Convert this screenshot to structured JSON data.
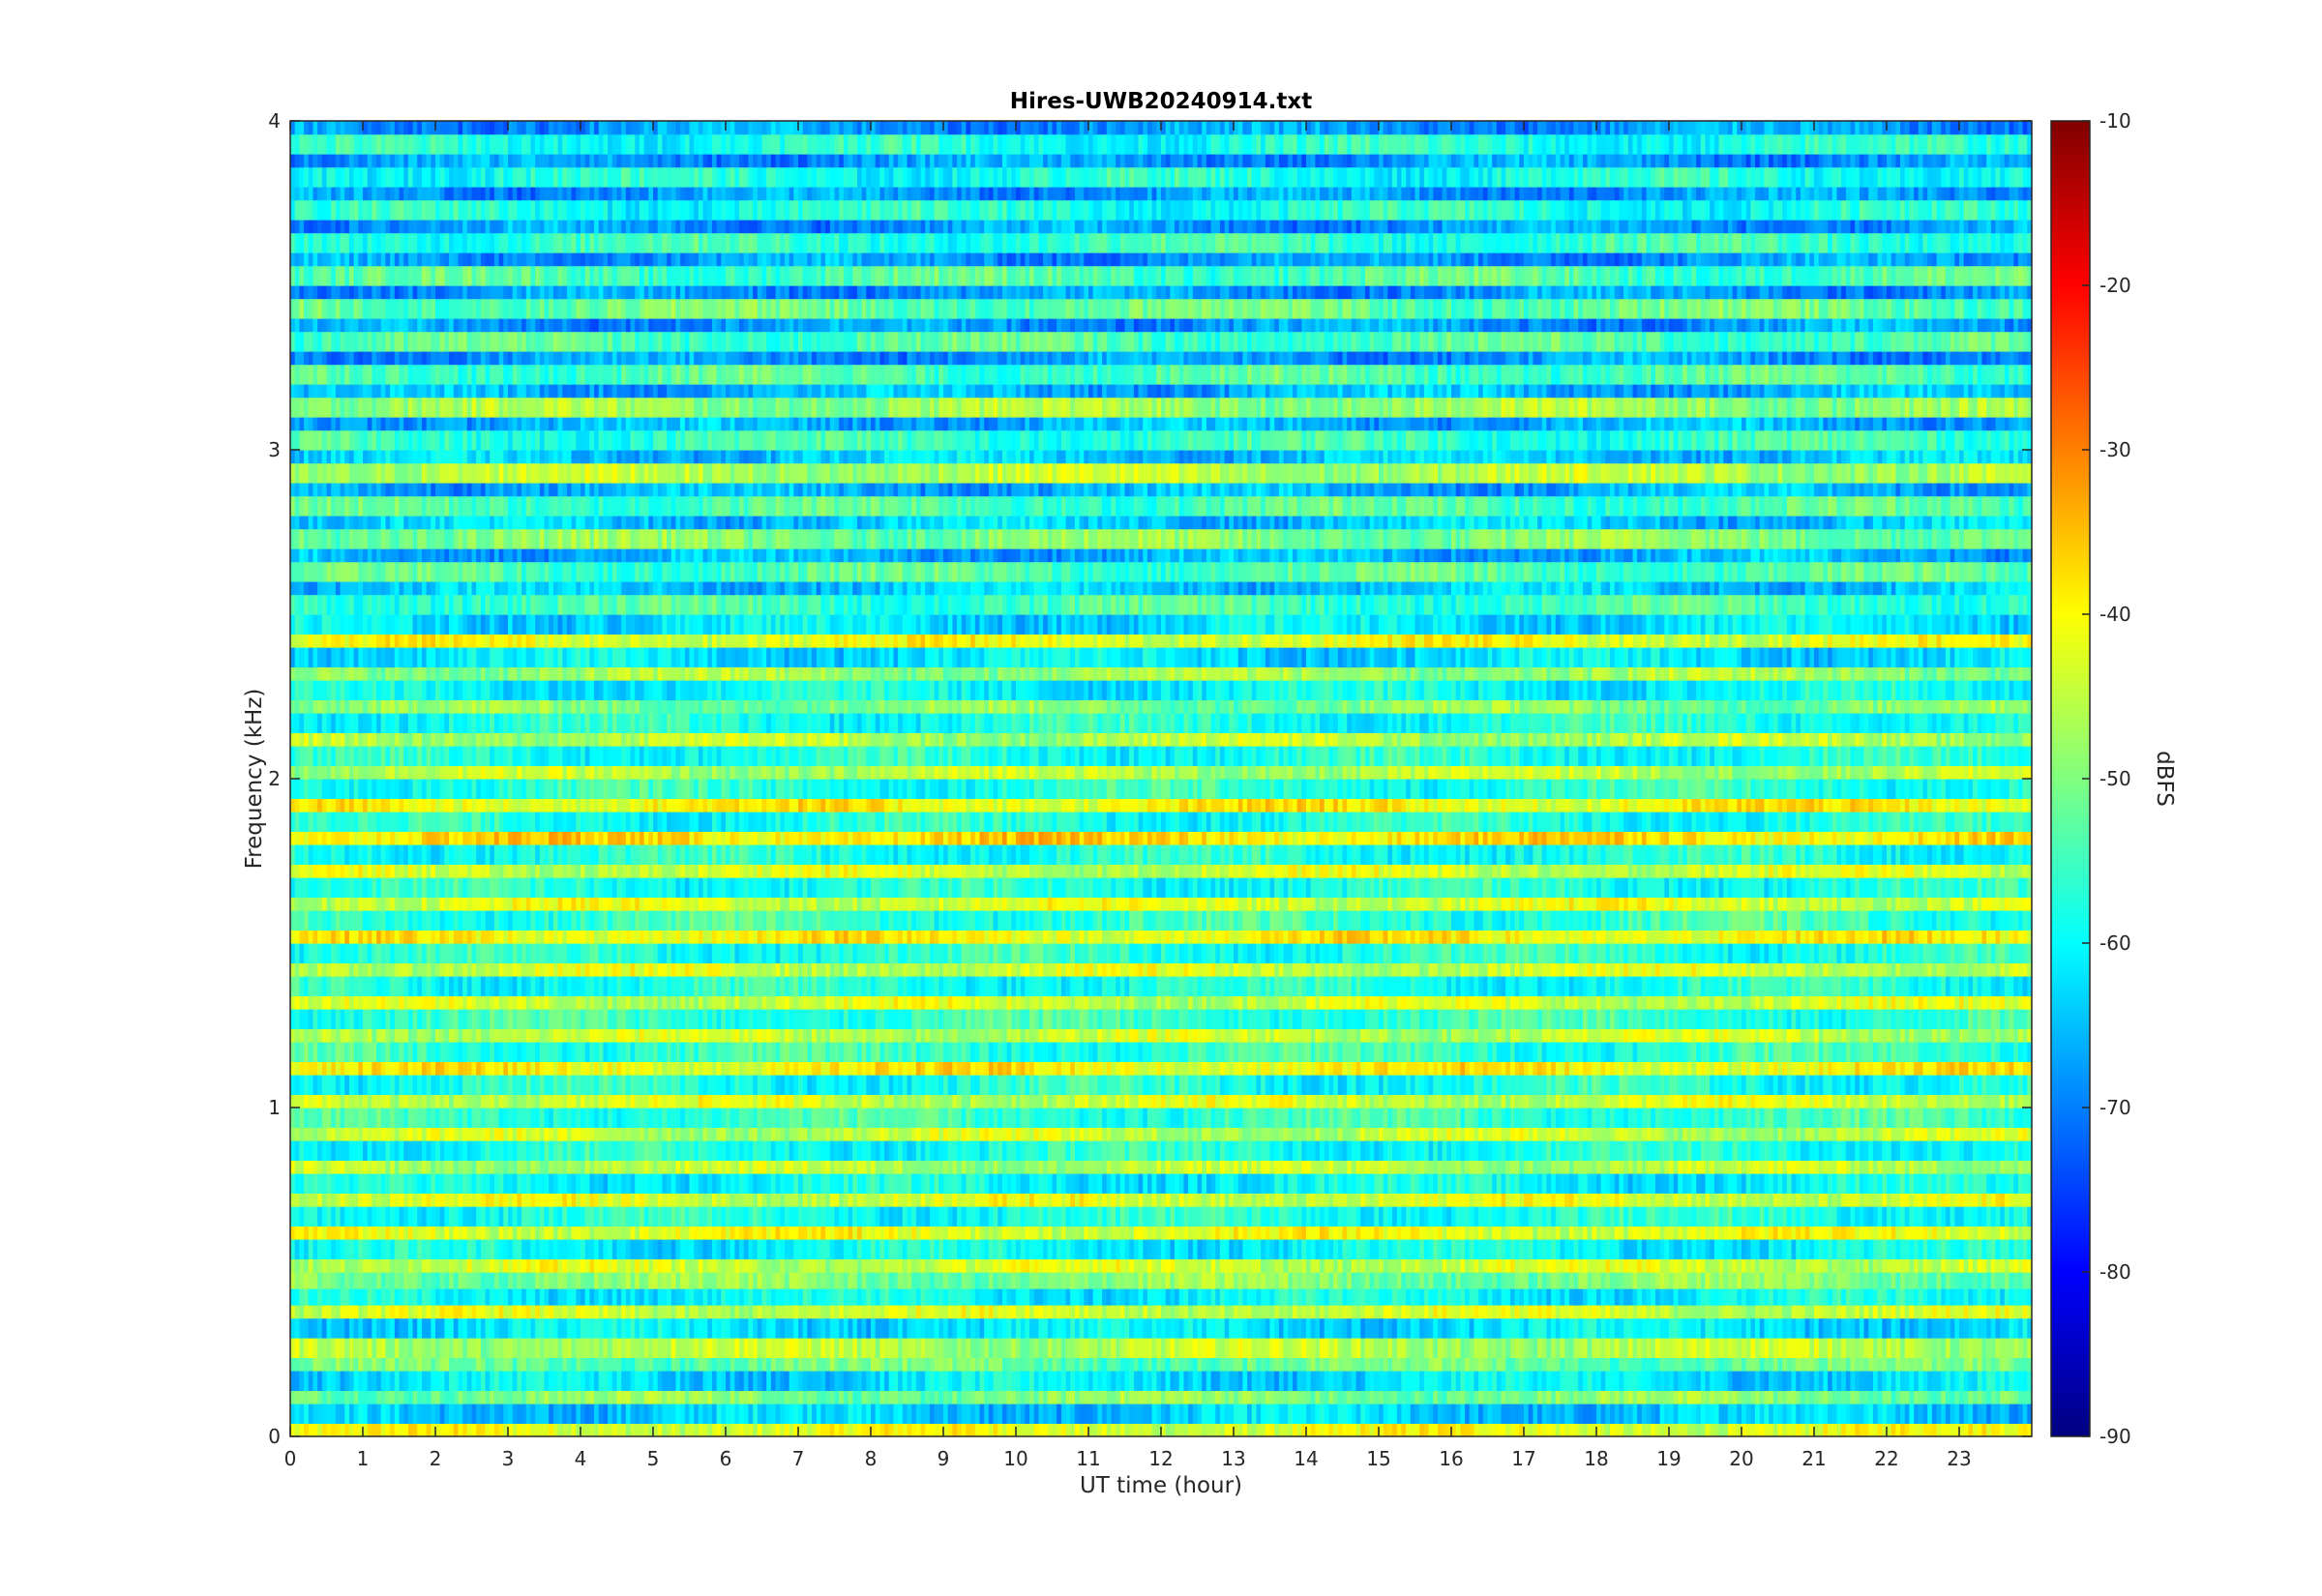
{
  "chart_data": {
    "type": "heatmap",
    "title": "Hires-UWB20240914.txt",
    "xlabel": "UT time (hour)",
    "ylabel": "Frequency (kHz)",
    "colorbar_label": "dBFS",
    "xlim": [
      0,
      24
    ],
    "ylim": [
      0,
      4
    ],
    "clim": [
      -90,
      -10
    ],
    "colormap": "jet",
    "x_ticks": [
      "0",
      "1",
      "2",
      "3",
      "4",
      "5",
      "6",
      "7",
      "8",
      "9",
      "10",
      "11",
      "12",
      "13",
      "14",
      "15",
      "16",
      "17",
      "18",
      "19",
      "20",
      "21",
      "22",
      "23"
    ],
    "y_ticks": [
      "0",
      "1",
      "2",
      "3",
      "4"
    ],
    "colorbar_ticks": [
      "-90",
      "-80",
      "-70",
      "-60",
      "-50",
      "-40",
      "-30",
      "-20",
      "-10"
    ],
    "x_step_hours": 0.0625,
    "band_edges_khz": [
      0,
      0.04,
      0.1,
      0.14,
      0.2,
      0.24,
      0.3,
      0.36,
      0.4,
      0.45,
      0.5,
      0.54,
      0.6,
      0.64,
      0.7,
      0.74,
      0.8,
      0.84,
      0.9,
      0.94,
      1.0,
      1.04,
      1.1,
      1.14,
      1.2,
      1.24,
      1.3,
      1.34,
      1.4,
      1.44,
      1.5,
      1.54,
      1.6,
      1.64,
      1.7,
      1.74,
      1.8,
      1.84,
      1.9,
      1.94,
      2.0,
      2.04,
      2.1,
      2.14,
      2.2,
      2.24,
      2.3,
      2.34,
      2.4,
      2.44,
      2.5,
      2.56,
      2.6,
      2.66,
      2.7,
      2.76,
      2.8,
      2.86,
      2.9,
      2.96,
      3.0,
      3.06,
      3.1,
      3.16,
      3.2,
      3.26,
      3.3,
      3.36,
      3.4,
      3.46,
      3.5,
      3.56,
      3.6,
      3.66,
      3.7,
      3.76,
      3.8,
      3.86,
      3.9,
      3.96,
      4.0
    ],
    "band_levels_dbfs": [
      -42,
      -64,
      -50,
      -62,
      -52,
      -46,
      -62,
      -44,
      -60,
      -50,
      -44,
      -60,
      -42,
      -58,
      -43,
      -60,
      -46,
      -58,
      -45,
      -56,
      -44,
      -58,
      -40,
      -56,
      -45,
      -56,
      -44,
      -58,
      -44,
      -57,
      -40,
      -56,
      -43,
      -58,
      -44,
      -58,
      -38,
      -58,
      -40,
      -57,
      -46,
      -58,
      -46,
      -58,
      -50,
      -60,
      -48,
      -62,
      -42,
      -62,
      -55,
      -64,
      -54,
      -66,
      -50,
      -64,
      -54,
      -66,
      -46,
      -64,
      -56,
      -66,
      -48,
      -66,
      -54,
      -68,
      -54,
      -68,
      -52,
      -68,
      -54,
      -68,
      -56,
      -68,
      -58,
      -68,
      -58,
      -68,
      -58,
      -68
    ]
  }
}
